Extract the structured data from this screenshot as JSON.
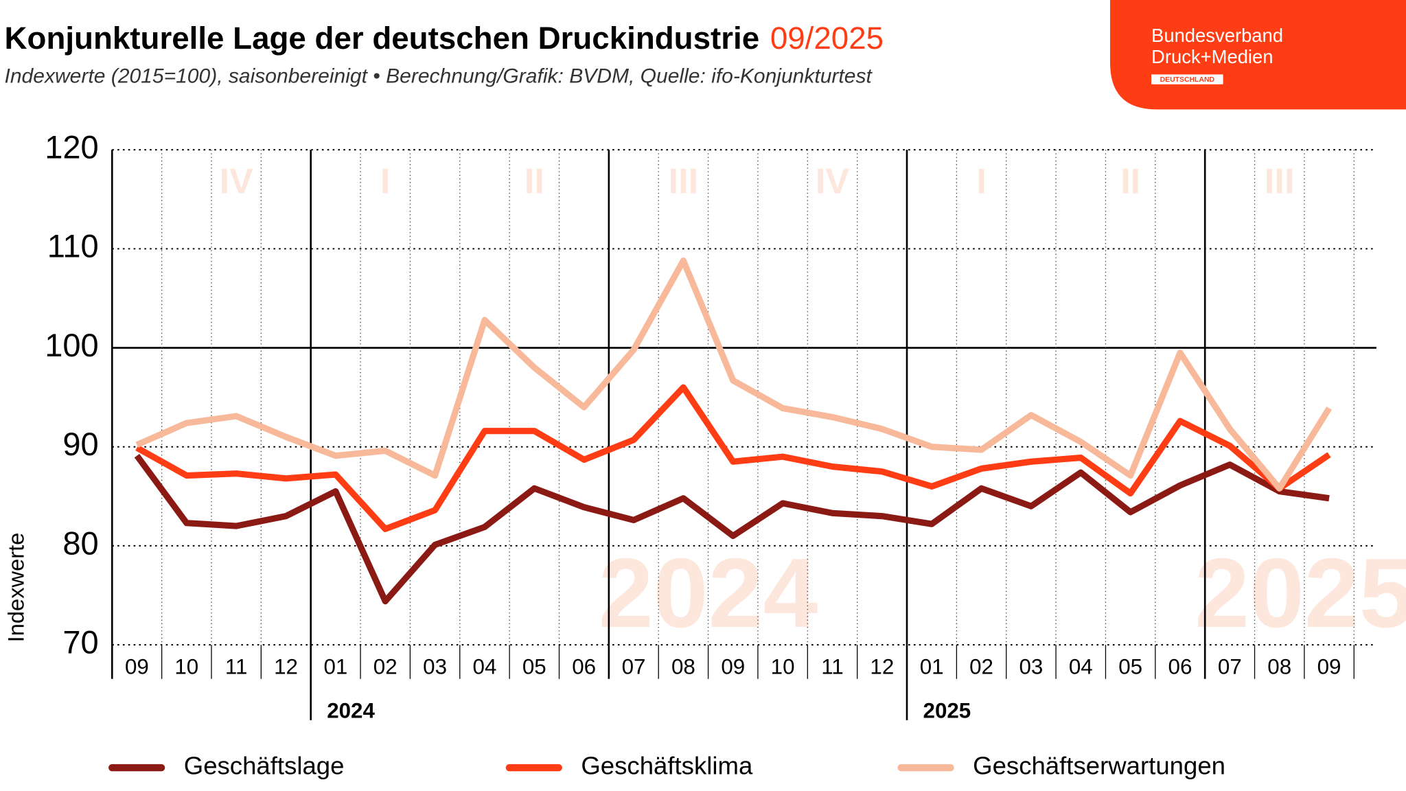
{
  "logo": {
    "lines": [
      "Bundesverband",
      "Druck+Medien"
    ],
    "tag": "DEUTSCHLAND"
  },
  "chart_data": {
    "type": "line",
    "title": "Konjunkturelle Lage der deutschen Druckindustrie",
    "title_date": "09/2025",
    "subtitle": "Indexwerte (2015=100), saisonbereinigt • Berechnung/Grafik: BVDM, Quelle: ifo-Konjunkturtest",
    "y_label": "Indexwerte",
    "categories": [
      "09",
      "10",
      "11",
      "12",
      "01",
      "02",
      "03",
      "04",
      "05",
      "06",
      "07",
      "08",
      "09",
      "10",
      "11",
      "12",
      "01",
      "02",
      "03",
      "04",
      "05",
      "06",
      "07",
      "08",
      "09"
    ],
    "years": [
      "2024",
      "2025"
    ],
    "quarters": [
      "IV",
      "I",
      "II",
      "III",
      "IV",
      "I",
      "II",
      "III"
    ],
    "ylim": [
      70,
      120
    ],
    "yticks": [
      70,
      80,
      90,
      100,
      110,
      120
    ],
    "reference_line": 100,
    "series": [
      {
        "name": "Geschäftslage",
        "color": "#8b1a14",
        "values": [
          89.1,
          82.3,
          82.0,
          83.0,
          85.5,
          74.4,
          80.1,
          81.9,
          85.8,
          83.9,
          82.6,
          84.8,
          81.0,
          84.3,
          83.3,
          83.0,
          82.2,
          85.8,
          84.0,
          87.4,
          83.4,
          86.1,
          88.2,
          85.5,
          84.8
        ]
      },
      {
        "name": "Geschäftsklima",
        "color": "#ff3d14",
        "values": [
          89.9,
          87.1,
          87.3,
          86.8,
          87.2,
          81.7,
          83.6,
          91.6,
          91.6,
          88.7,
          90.7,
          96.0,
          88.5,
          89.0,
          88.0,
          87.5,
          86.0,
          87.8,
          88.5,
          88.9,
          85.3,
          92.6,
          90.1,
          85.8,
          89.2
        ]
      },
      {
        "name": "Geschäftserwartungen",
        "color": "#f7b99a",
        "values": [
          90.2,
          92.4,
          93.1,
          91.0,
          89.1,
          89.6,
          87.1,
          102.8,
          98.0,
          94.0,
          99.8,
          108.8,
          96.7,
          93.9,
          93.0,
          91.8,
          90.0,
          89.7,
          93.2,
          90.5,
          87.1,
          99.5,
          91.8,
          85.8,
          93.9
        ]
      }
    ]
  }
}
